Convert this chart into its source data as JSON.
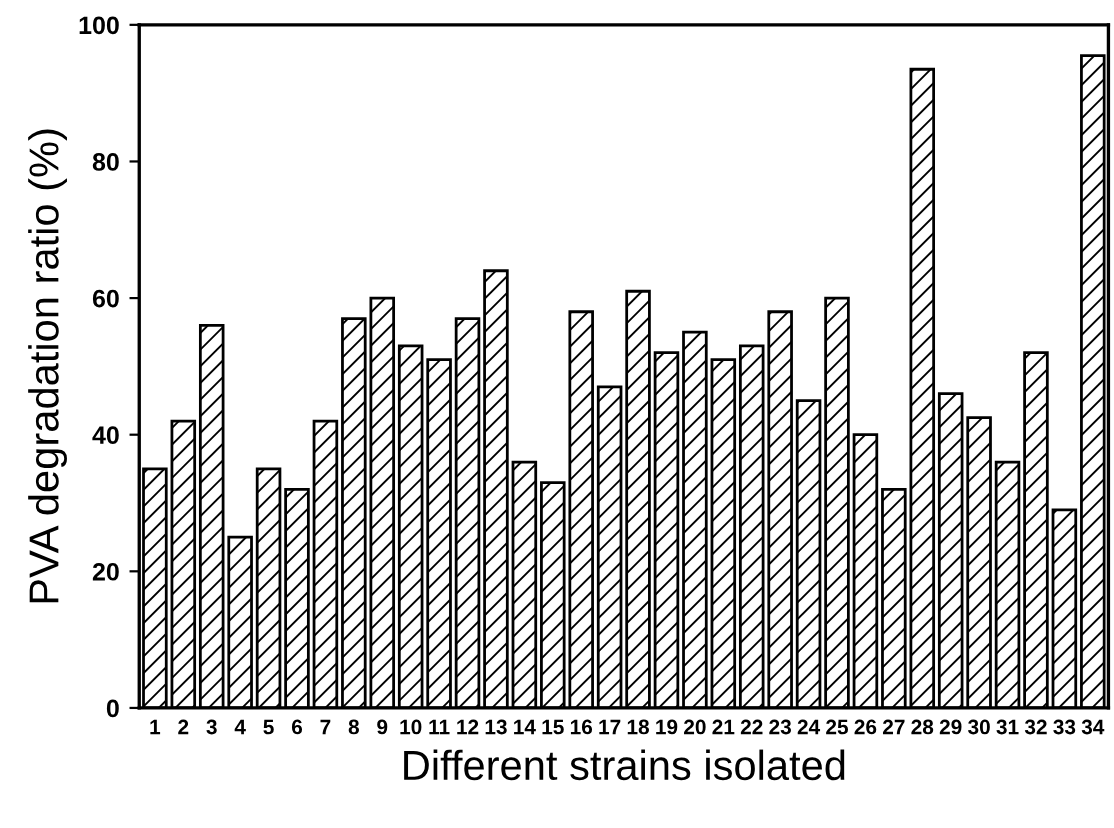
{
  "chart_data": {
    "type": "bar",
    "xlabel": "Different strains isolated",
    "ylabel": "PVA degradation ratio (%)",
    "categories": [
      "1",
      "2",
      "3",
      "4",
      "5",
      "6",
      "7",
      "8",
      "9",
      "10",
      "11",
      "12",
      "13",
      "14",
      "15",
      "16",
      "17",
      "18",
      "19",
      "20",
      "21",
      "22",
      "23",
      "24",
      "25",
      "26",
      "27",
      "28",
      "29",
      "30",
      "31",
      "32",
      "33",
      "34"
    ],
    "values": [
      35,
      42,
      56,
      25,
      35,
      32,
      42,
      57,
      60,
      53,
      51,
      57,
      64,
      36,
      33,
      58,
      47,
      61,
      52,
      55,
      51,
      53,
      58,
      45,
      60,
      40,
      32,
      93.5,
      46,
      42.5,
      36,
      52,
      29,
      95.5
    ],
    "color": "#000000",
    "ylim": [
      0,
      100
    ],
    "yticks": [
      0,
      20,
      40,
      60,
      80,
      100
    ],
    "grid": false
  }
}
